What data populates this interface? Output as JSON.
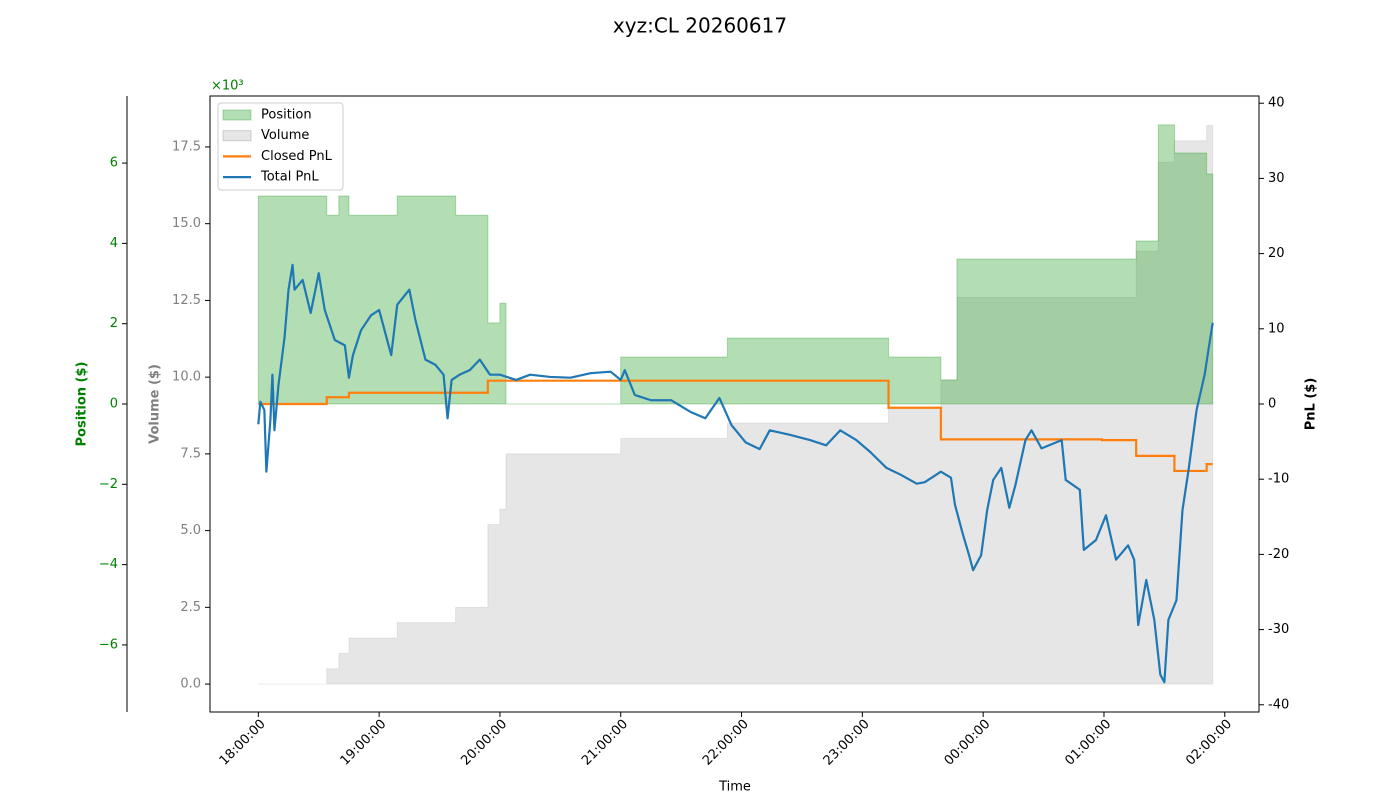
{
  "chart_data": {
    "type": "line",
    "title": "xyz:CL 20260617",
    "xlabel": "Time",
    "xlim": [
      "17:36:00",
      "02:17:00"
    ],
    "xticks": [
      "18:00:00",
      "19:00:00",
      "20:00:00",
      "21:00:00",
      "22:00:00",
      "23:00:00",
      "00:00:00",
      "01:00:00",
      "02:00:00"
    ],
    "ylabel": "Position ($)",
    "ycolor": "#008000",
    "yoffset_text": "×10³",
    "ylim": [
      -7670,
      7670
    ],
    "yticks": [
      {
        "value": -6000,
        "label": "−6"
      },
      {
        "value": -4000,
        "label": "−4"
      },
      {
        "value": -2000,
        "label": "−2"
      },
      0,
      {
        "value": 2000,
        "label": "2"
      },
      {
        "value": 4000,
        "label": "4"
      },
      {
        "value": 6000,
        "label": "6"
      }
    ],
    "y2label": "Volume ($)",
    "y2color": "#808080",
    "y2lim": [
      -0.91,
      19.16
    ],
    "y2ticks": [
      {
        "value": 0,
        "label": "0.0"
      },
      2.5,
      {
        "value": 5,
        "label": "5.0"
      },
      7.5,
      {
        "value": 10,
        "label": "10.0"
      },
      12.5,
      {
        "value": 15,
        "label": "15.0"
      },
      17.5
    ],
    "y3label": "PnL ($)",
    "y3lim": [
      -40.96,
      40.96
    ],
    "y3ticks": [
      -40,
      -30,
      -20,
      -10,
      0,
      10,
      20,
      30,
      40
    ],
    "legend": "upper left",
    "series": [
      {
        "name": "Position",
        "kind": "step-area",
        "axis": "y",
        "color": "#2ca02c",
        "x": [
          "18:00:00",
          "18:34:00",
          "18:40:00",
          "18:45:00",
          "19:09:00",
          "19:38:00",
          "19:54:00",
          "20:00:00",
          "20:03:00",
          "21:00:00",
          "21:53:00",
          "23:13:00",
          "23:39:00",
          "23:47:00",
          "01:16:00",
          "01:27:00",
          "01:35:00",
          "01:51:00",
          "01:54:00"
        ],
        "values": [
          5180,
          4700,
          5180,
          4700,
          5180,
          4700,
          2020,
          2510,
          0,
          1170,
          1640,
          1170,
          600,
          3610,
          4060,
          6950,
          6250,
          5730,
          5730
        ]
      },
      {
        "name": "Volume",
        "kind": "step-area",
        "axis": "y2",
        "color": "#808080",
        "x": [
          "18:00:00",
          "18:34:00",
          "18:40:00",
          "18:45:00",
          "19:09:00",
          "19:38:00",
          "19:54:00",
          "20:00:00",
          "20:03:00",
          "21:00:00",
          "21:53:00",
          "23:13:00",
          "23:39:00",
          "23:47:00",
          "01:16:00",
          "01:27:00",
          "01:35:00",
          "01:51:00",
          "01:54:00"
        ],
        "values": [
          0,
          0.5,
          1.0,
          1.5,
          2.0,
          2.5,
          5.2,
          5.7,
          7.5,
          8.0,
          8.5,
          9.0,
          9.9,
          12.6,
          14.1,
          17.0,
          17.7,
          18.2,
          18.2
        ]
      },
      {
        "name": "Closed PnL",
        "kind": "step-line",
        "axis": "y3",
        "color": "#ff7f0e",
        "x": [
          "18:00:00",
          "18:34:00",
          "18:45:00",
          "19:54:00",
          "23:13:00",
          "23:39:00",
          "00:59:00",
          "01:16:00",
          "01:35:00",
          "01:51:00",
          "01:54:00"
        ],
        "values": [
          0,
          0.9,
          1.5,
          3.1,
          -0.5,
          -4.7,
          -4.8,
          -6.9,
          -8.9,
          -8.0,
          -8.0
        ]
      },
      {
        "name": "Total PnL",
        "kind": "line",
        "axis": "y3",
        "color": "#1f77b4",
        "x": [
          "18:00:00",
          "18:01:00",
          "18:03:00",
          "18:04:00",
          "18:06:00",
          "18:07:00",
          "18:08:00",
          "18:10:00",
          "18:13:00",
          "18:15:00",
          "18:17:00",
          "18:18:00",
          "18:22:00",
          "18:26:00",
          "18:30:00",
          "18:33:00",
          "18:38:00",
          "18:43:00",
          "18:45:00",
          "18:47:00",
          "18:51:00",
          "18:56:00",
          "19:00:00",
          "19:04:00",
          "19:06:00",
          "19:09:00",
          "19:15:00",
          "19:18:00",
          "19:23:00",
          "19:28:00",
          "19:32:00",
          "19:34:00",
          "19:36:00",
          "19:40:00",
          "19:45:00",
          "19:50:00",
          "19:55:00",
          "20:00:00",
          "20:08:00",
          "20:15:00",
          "20:25:00",
          "20:35:00",
          "20:45:00",
          "20:55:00",
          "21:00:00",
          "21:02:00",
          "21:07:00",
          "21:15:00",
          "21:25:00",
          "21:35:00",
          "21:42:00",
          "21:49:00",
          "21:55:00",
          "22:02:00",
          "22:09:00",
          "22:14:00",
          "22:24:00",
          "22:34:00",
          "22:42:00",
          "22:49:00",
          "22:57:00",
          "23:04:00",
          "23:12:00",
          "23:19:00",
          "23:27:00",
          "23:31:00",
          "23:39:00",
          "23:44:00",
          "23:46:00",
          "23:50:00",
          "23:53:00",
          "23:55:00",
          "23:59:00",
          "00:02:00",
          "00:05:00",
          "00:09:00",
          "00:13:00",
          "00:16:00",
          "00:21:00",
          "00:24:00",
          "00:29:00",
          "00:39:00",
          "00:41:00",
          "00:48:00",
          "00:50:00",
          "00:56:00",
          "01:01:00",
          "01:06:00",
          "01:12:00",
          "01:15:00",
          "01:17:00",
          "01:21:00",
          "01:25:00",
          "01:28:00",
          "01:30:00",
          "01:32:00",
          "01:36:00",
          "01:39:00",
          "01:42:00",
          "01:46:00",
          "01:50:00",
          "01:52:00",
          "01:54:00"
        ],
        "values": [
          -2.7,
          0.3,
          -0.8,
          -9.0,
          -2.1,
          3.9,
          -3.5,
          2.5,
          8.8,
          15.2,
          18.5,
          15.2,
          16.5,
          12.1,
          17.4,
          12.5,
          8.5,
          7.8,
          3.5,
          6.5,
          9.8,
          11.8,
          12.5,
          8.5,
          6.5,
          13.2,
          15.2,
          11.2,
          5.9,
          5.2,
          3.9,
          -1.9,
          3.2,
          3.9,
          4.5,
          5.9,
          3.9,
          3.9,
          3.2,
          3.9,
          3.6,
          3.5,
          4.1,
          4.3,
          3.2,
          4.5,
          1.2,
          0.5,
          0.5,
          -1.1,
          -1.9,
          0.8,
          -2.8,
          -5.1,
          -6.0,
          -3.5,
          -4.1,
          -4.8,
          -5.5,
          -3.5,
          -4.8,
          -6.4,
          -8.5,
          -9.4,
          -10.6,
          -10.4,
          -9.0,
          -9.8,
          -13.4,
          -17.4,
          -20.1,
          -22.1,
          -20.1,
          -14.1,
          -10.1,
          -8.5,
          -13.8,
          -10.8,
          -4.8,
          -3.5,
          -5.9,
          -4.8,
          -10.1,
          -11.4,
          -19.4,
          -18.1,
          -14.8,
          -20.7,
          -18.8,
          -20.7,
          -29.4,
          -23.4,
          -28.7,
          -36.0,
          -37.0,
          -28.7,
          -26.1,
          -14.1,
          -8.8,
          -0.8,
          3.9,
          7.4,
          10.8
        ]
      }
    ]
  }
}
